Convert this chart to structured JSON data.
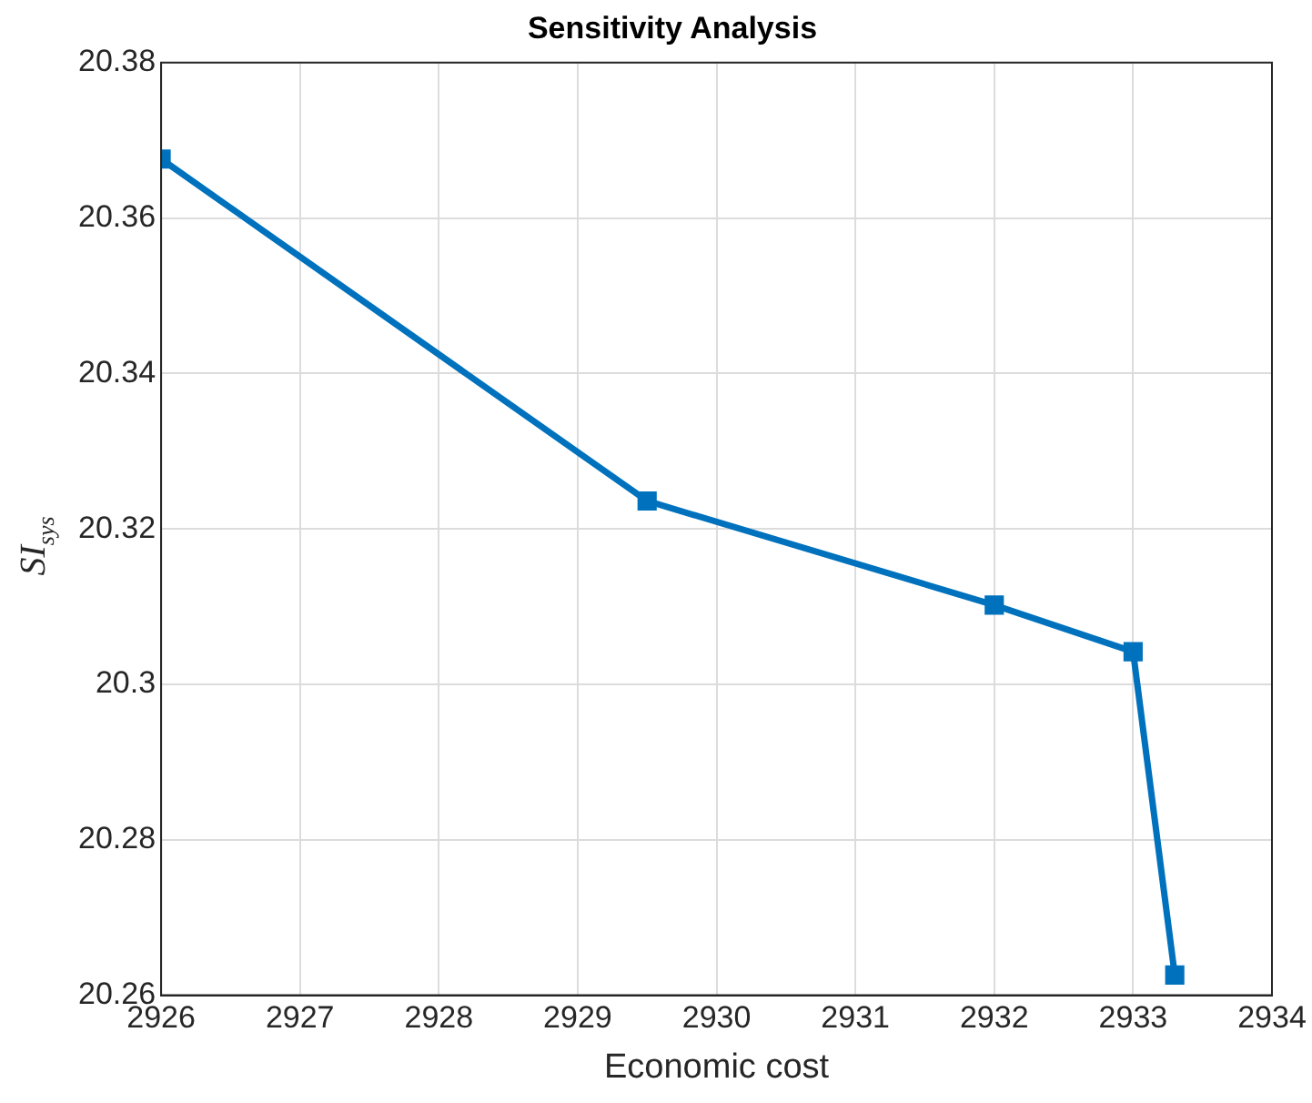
{
  "chart_data": {
    "type": "line",
    "title": "Sensitivity Analysis",
    "xlabel": "Economic cost",
    "ylabel": "SI$_{sys}$",
    "x": [
      2926,
      2929.5,
      2932,
      2933,
      2933.3
    ],
    "series": [
      {
        "color": "#0072bd",
        "values": [
          20.3676,
          20.3236,
          20.3102,
          20.3042,
          20.2626
        ]
      }
    ],
    "xlim": [
      2926,
      2934
    ],
    "xticks": [
      2926,
      2927,
      2928,
      2929,
      2930,
      2931,
      2932,
      2933,
      2934
    ],
    "ylim": [
      20.26,
      20.38
    ],
    "yticks": [
      20.26,
      20.28,
      20.3,
      20.32,
      20.34,
      20.36,
      20.38
    ],
    "grid": true,
    "marker": "square",
    "line_style": "solid"
  }
}
